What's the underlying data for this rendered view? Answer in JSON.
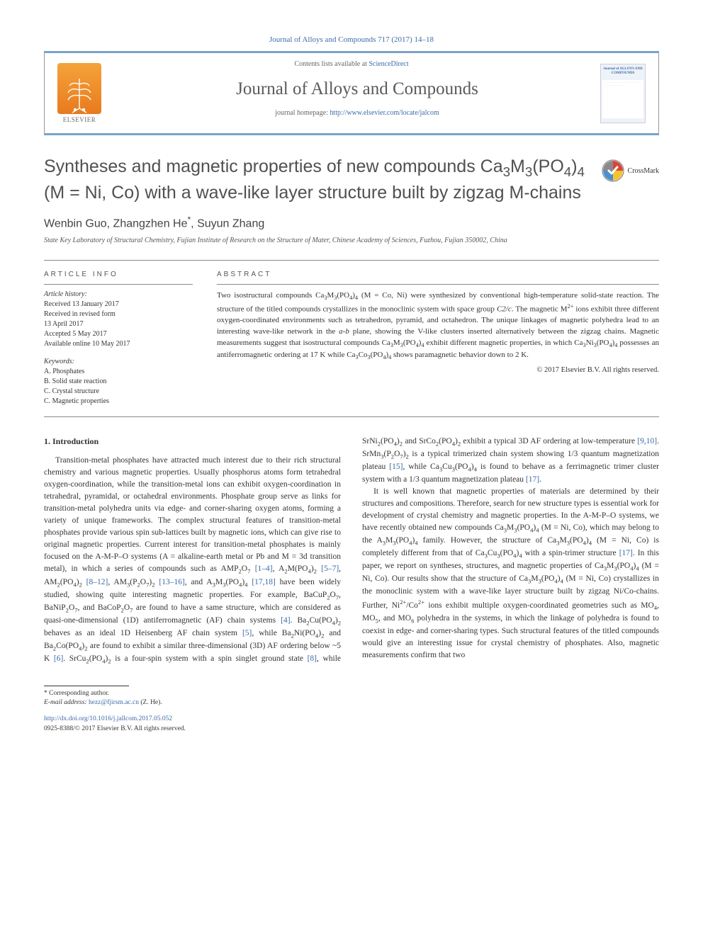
{
  "top_citation": "Journal of Alloys and Compounds 717 (2017) 14–18",
  "header": {
    "contents_line_pre": "Contents lists available at ",
    "contents_link": "ScienceDirect",
    "journal_name": "Journal of Alloys and Compounds",
    "homepage_pre": "journal homepage: ",
    "homepage_url": "http://www.elsevier.com/locate/jalcom",
    "publisher": "ELSEVIER",
    "cover_thumb_title": "Journal of ALLOYS AND COMPOUNDS"
  },
  "crossmark": "CrossMark",
  "title_html": "Syntheses and magnetic properties of new compounds Ca<sub>3</sub>M<sub>3</sub>(PO<sub>4</sub>)<sub>4</sub> (M = Ni, Co) with a wave-like layer structure built by zigzag M-chains",
  "authors_html": "Wenbin Guo, Zhangzhen He<sup>*</sup>, Suyun Zhang",
  "affiliation": "State Key Laboratory of Structural Chemistry, Fujian Institute of Research on the Structure of Mater, Chinese Academy of Sciences, Fuzhou, Fujian 350002, China",
  "article_info": {
    "head": "ARTICLE INFO",
    "history_label": "Article history:",
    "history": [
      "Received 13 January 2017",
      "Received in revised form",
      "13 April 2017",
      "Accepted 5 May 2017",
      "Available online 10 May 2017"
    ],
    "keywords_label": "Keywords:",
    "keywords": [
      "A. Phosphates",
      "B. Solid state reaction",
      "C. Crystal structure",
      "C. Magnetic properties"
    ]
  },
  "abstract": {
    "head": "ABSTRACT",
    "text_html": "Two isostructural compounds Ca<sub>3</sub>M<sub>3</sub>(PO<sub>4</sub>)<sub>4</sub> (M = Co, Ni) were synthesized by conventional high-temperature solid-state reaction. The structure of the titled compounds crystallizes in the monoclinic system with space group <i>C2/c</i>. The magnetic M<sup>2+</sup> ions exhibit three different oxygen-coordinated environments such as tetrahedron, pyramid, and octahedron. The unique linkages of magnetic polyhedra lead to an interesting wave-like network in the <i>a-b</i> plane, showing the V-like clusters inserted alternatively between the zigzag chains. Magnetic measurements suggest that isostructural compounds Ca<sub>3</sub>M<sub>3</sub>(PO<sub>4</sub>)<sub>4</sub> exhibit different magnetic properties, in which Ca<sub>3</sub>Ni<sub>3</sub>(PO<sub>4</sub>)<sub>4</sub> possesses an antiferromagnetic ordering at 17 K while Ca<sub>3</sub>Co<sub>3</sub>(PO<sub>4</sub>)<sub>4</sub> shows paramagnetic behavior down to 2 K.",
    "copyright": "© 2017 Elsevier B.V. All rights reserved."
  },
  "section1": {
    "head": "1. Introduction",
    "para1_html": "Transition-metal phosphates have attracted much interest due to their rich structural chemistry and various magnetic properties. Usually phosphorus atoms form tetrahedral oxygen-coordination, while the transition-metal ions can exhibit oxygen-coordination in tetrahedral, pyramidal, or octahedral environments. Phosphate group serve as links for transition-metal polyhedra units via edge- and corner-sharing oxygen atoms, forming a variety of unique frameworks. The complex structural features of transition-metal phosphates provide various spin sub-lattices built by magnetic ions, which can give rise to original magnetic properties. Current interest for transition-metal phosphates is mainly focused on the A-M-P–O systems (A = alkaline-earth metal or Pb and M = 3d transition metal), in which a series of compounds such as AMP<sub>2</sub>O<sub>7</sub> <a class=\"ref\" href=\"#\">[1–4]</a>, A<sub>2</sub>M(PO<sub>4</sub>)<sub>2</sub> <a class=\"ref\" href=\"#\">[5–7]</a>, AM<sub>2</sub>(PO<sub>4</sub>)<sub>2</sub> <a class=\"ref\" href=\"#\">[8–12]</a>, AM<sub>3</sub>(P<sub>2</sub>O<sub>7</sub>)<sub>2</sub> <a class=\"ref\" href=\"#\">[13–16]</a>, and A<sub>3</sub>M<sub>3</sub>(PO<sub>4</sub>)<sub>4</sub> <a class=\"ref\" href=\"#\">[17,18]</a> have been widely studied, showing quite interesting magnetic properties. For example, BaCuP<sub>2</sub>O<sub>7</sub>, BaNiP<sub>2</sub>O<sub>7</sub>, and BaCoP<sub>2</sub>O<sub>7</sub> are found to have a same structure, which are considered as quasi-one-dimensional (1D) antiferromagnetic (AF) chain systems <a class=\"ref\" href=\"#\">[4]</a>. Ba<sub>2</sub>Cu(PO<sub>4</sub>)<sub>2</sub> behaves as an ideal 1D Heisenberg AF chain system <a class=\"ref\" href=\"#\">[5]</a>, while Ba<sub>2</sub>Ni(PO<sub>4</sub>)<sub>2</sub> and Ba<sub>2</sub>Co(PO<sub>4</sub>)<sub>2</sub> are found to exhibit a similar three-dimensional (3D) AF ordering below ~5 K <a class=\"ref\" href=\"#\">[6]</a>. SrCu<sub>2</sub>(PO<sub>4</sub>)<sub>2</sub> is a four-spin system with a spin singlet ground state <a class=\"ref\" href=\"#\">[8]</a>, while SrNi<sub>2</sub>(PO<sub>4</sub>)<sub>2</sub> and SrCo<sub>2</sub>(PO<sub>4</sub>)<sub>2</sub> exhibit a typical 3D AF ordering at low-temperature <a class=\"ref\" href=\"#\">[9,10]</a>. SrMn<sub>3</sub>(P<sub>2</sub>O<sub>7</sub>)<sub>2</sub> is a typical trimerized chain system showing 1/3 quantum magnetization plateau <a class=\"ref\" href=\"#\">[15]</a>, while Ca<sub>3</sub>Cu<sub>3</sub>(PO<sub>4</sub>)<sub>4</sub> is found to behave as a ferrimagnetic trimer cluster system with a 1/3 quantum magnetization plateau <a class=\"ref\" href=\"#\">[17]</a>.",
    "para2_html": "It is well known that magnetic properties of materials are determined by their structures and compositions. Therefore, search for new structure types is essential work for development of crystal chemistry and magnetic properties. In the A-M-P–O systems, we have recently obtained new compounds Ca<sub>3</sub>M<sub>3</sub>(PO<sub>4</sub>)<sub>4</sub> (M = Ni, Co), which may belong to the A<sub>3</sub>M<sub>3</sub>(PO<sub>4</sub>)<sub>4</sub> family. However, the structure of Ca<sub>3</sub>M<sub>3</sub>(PO<sub>4</sub>)<sub>4</sub> (M = Ni, Co) is completely different from that of Ca<sub>3</sub>Cu<sub>3</sub>(PO<sub>4</sub>)<sub>4</sub> with a spin-trimer structure <a class=\"ref\" href=\"#\">[17]</a>. In this paper, we report on syntheses, structures, and magnetic properties of Ca<sub>3</sub>M<sub>3</sub>(PO<sub>4</sub>)<sub>4</sub> (M = Ni, Co). Our results show that the structure of Ca<sub>3</sub>M<sub>3</sub>(PO<sub>4</sub>)<sub>4</sub> (M = Ni, Co) crystallizes in the monoclinic system with a wave-like layer structure built by zigzag Ni/Co-chains. Further, Ni<sup>2+</sup>/Co<sup>2+</sup> ions exhibit multiple oxygen-coordinated geometries such as MO<sub>4</sub>, MO<sub>5</sub>, and MO<sub>6</sub> polyhedra in the systems, in which the linkage of polyhedra is found to coexist in edge- and corner-sharing types. Such structural features of the titled compounds would give an interesting issue for crystal chemistry of phosphates. Also, magnetic measurements confirm that two"
  },
  "footnote": {
    "corr": "* Corresponding author.",
    "email_label": "E-mail address:",
    "email": "hezz@fjirsm.ac.cn",
    "email_who": "(Z. He)."
  },
  "doi": {
    "url": "http://dx.doi.org/10.1016/j.jallcom.2017.05.052",
    "line2": "0925-8388/© 2017 Elsevier B.V. All rights reserved."
  },
  "colors": {
    "link": "#3a6ba5",
    "rule": "#7aa3c9",
    "text": "#333333",
    "heading": "#505050"
  }
}
